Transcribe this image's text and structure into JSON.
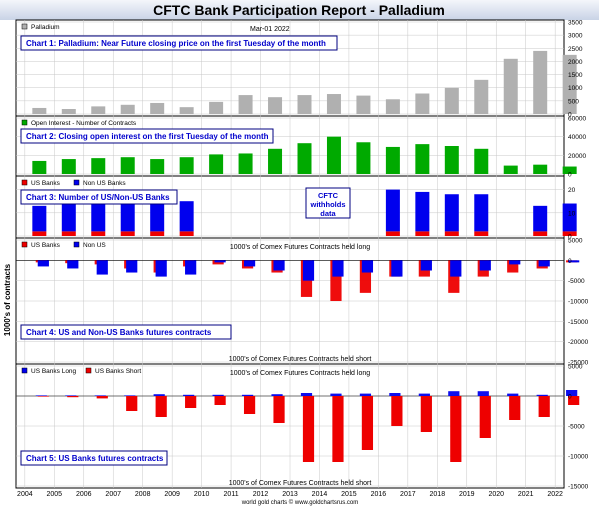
{
  "header": {
    "title": "CFTC Bank Participation Report - Palladium",
    "date": "Mar-01  2022",
    "footer": "world gold charts © www.goldchartsrus.com",
    "yaxis_title": "1000's of contracts"
  },
  "years": [
    "2004",
    "2005",
    "2006",
    "2007",
    "2008",
    "2009",
    "2010",
    "2011",
    "2012",
    "2013",
    "2014",
    "2015",
    "2016",
    "2017",
    "2018",
    "2019",
    "2020",
    "2021",
    "2022"
  ],
  "chart_data": [
    {
      "id": "chart1",
      "type": "bar",
      "title": "Chart 1: Palladium: Near Future closing price on the first Tuesday of the month",
      "legend": [
        {
          "name": "Palladium",
          "color": "#b0b0b0"
        }
      ],
      "ylim": [
        0,
        3500
      ],
      "yticks": [
        0,
        500,
        1000,
        1500,
        2000,
        2500,
        3000,
        3500
      ],
      "x": [
        2004,
        2005,
        2006,
        2007,
        2008,
        2009,
        2010,
        2011,
        2012,
        2013,
        2014,
        2015,
        2016,
        2017,
        2018,
        2019,
        2020,
        2021,
        2022
      ],
      "series": [
        {
          "name": "Palladium",
          "values": [
            230,
            190,
            290,
            350,
            420,
            260,
            460,
            720,
            640,
            720,
            760,
            700,
            560,
            780,
            1000,
            1300,
            2100,
            2400,
            2250
          ]
        }
      ]
    },
    {
      "id": "chart2",
      "type": "bar",
      "title": "Chart 2: Closing open interest on the first Tuesday of the month",
      "legend": [
        {
          "name": "Open Interest - Number of Contracts",
          "color": "#00aa00"
        }
      ],
      "ylim": [
        0,
        60000
      ],
      "yticks": [
        0,
        20000,
        40000,
        60000
      ],
      "x": [
        2004,
        2005,
        2006,
        2007,
        2008,
        2009,
        2010,
        2011,
        2012,
        2013,
        2014,
        2015,
        2016,
        2017,
        2018,
        2019,
        2020,
        2021,
        2022
      ],
      "series": [
        {
          "name": "Open Interest - Number of Contracts",
          "values": [
            14000,
            16000,
            17000,
            18000,
            16000,
            18000,
            21000,
            22000,
            27000,
            33000,
            40000,
            34000,
            29000,
            32000,
            30000,
            27000,
            9000,
            10000,
            8000
          ]
        }
      ]
    },
    {
      "id": "chart3",
      "type": "bar",
      "title": "Chart 3: Number of US/Non-US Banks",
      "annotation": "CFTC withholds data",
      "legend": [
        {
          "name": "US Banks",
          "color": "#ee0000"
        },
        {
          "name": "Non US Banks",
          "color": "#0000ee"
        }
      ],
      "ylim": [
        0,
        25
      ],
      "yticks": [
        0,
        10,
        20
      ],
      "x": [
        2004,
        2005,
        2006,
        2007,
        2008,
        2009,
        2016,
        2017,
        2018,
        2019,
        2020,
        2021,
        2022
      ],
      "series": [
        {
          "name": "US Banks",
          "values": [
            2,
            2,
            2,
            2,
            2,
            2,
            2,
            2,
            2,
            2,
            0,
            2,
            2
          ]
        },
        {
          "name": "Non US Banks",
          "values": [
            11,
            12,
            12,
            12,
            13,
            13,
            18,
            17,
            16,
            16,
            0,
            11,
            12
          ]
        }
      ]
    },
    {
      "id": "chart4",
      "type": "bar",
      "title": "Chart 4: US and Non-US Banks futures contracts",
      "label_top": "1000's of Comex Futures Contracts held long",
      "label_bottom": "1000's of Comex Futures Contracts held short",
      "legend": [
        {
          "name": "US Banks",
          "color": "#ee0000"
        },
        {
          "name": "Non US",
          "color": "#0000ee"
        }
      ],
      "ylim": [
        -25000,
        5000
      ],
      "yticks": [
        5000,
        0,
        -5000,
        -10000,
        -15000,
        -20000,
        -25000
      ],
      "x": [
        2004,
        2005,
        2006,
        2007,
        2008,
        2009,
        2010,
        2011,
        2012,
        2013,
        2014,
        2015,
        2016,
        2017,
        2018,
        2019,
        2020,
        2021,
        2022
      ],
      "series": [
        {
          "name": "US Banks",
          "values": [
            -500,
            -700,
            -1000,
            -2000,
            -3000,
            -1500,
            -1000,
            -2000,
            -3000,
            -9000,
            -10000,
            -8000,
            -4000,
            -4000,
            -8000,
            -4000,
            -3000,
            -2000,
            -500
          ]
        },
        {
          "name": "Non US",
          "values": [
            -1500,
            -2000,
            -3500,
            -3000,
            -4000,
            -3500,
            -500,
            -1500,
            -2500,
            -5000,
            -4000,
            -3000,
            -4000,
            -2500,
            -4000,
            -2500,
            -1000,
            -1500,
            -500
          ]
        }
      ]
    },
    {
      "id": "chart5",
      "type": "bar",
      "title": "Chart 5: US Banks futures contracts",
      "label_top": "1000's of Comex Futures Contracts held long",
      "label_bottom": "1000's of Comex Futures Contracts held short",
      "legend": [
        {
          "name": "US Banks Long",
          "color": "#0000ee"
        },
        {
          "name": "US Banks Short",
          "color": "#ee0000"
        }
      ],
      "ylim": [
        -15000,
        5000
      ],
      "yticks": [
        5000,
        0,
        -5000,
        -10000,
        -15000
      ],
      "x": [
        2004,
        2005,
        2006,
        2007,
        2008,
        2009,
        2010,
        2011,
        2012,
        2013,
        2014,
        2015,
        2016,
        2017,
        2018,
        2019,
        2020,
        2021,
        2022
      ],
      "series": [
        {
          "name": "US Banks Long",
          "values": [
            100,
            100,
            100,
            100,
            300,
            200,
            200,
            200,
            300,
            500,
            400,
            400,
            500,
            400,
            800,
            800,
            400,
            200,
            1000
          ]
        },
        {
          "name": "US Banks Short",
          "values": [
            -100,
            -200,
            -400,
            -2500,
            -3500,
            -2000,
            -1500,
            -3000,
            -4500,
            -11000,
            -11000,
            -9000,
            -5000,
            -6000,
            -11000,
            -7000,
            -4000,
            -3500,
            -1500
          ]
        }
      ]
    }
  ]
}
